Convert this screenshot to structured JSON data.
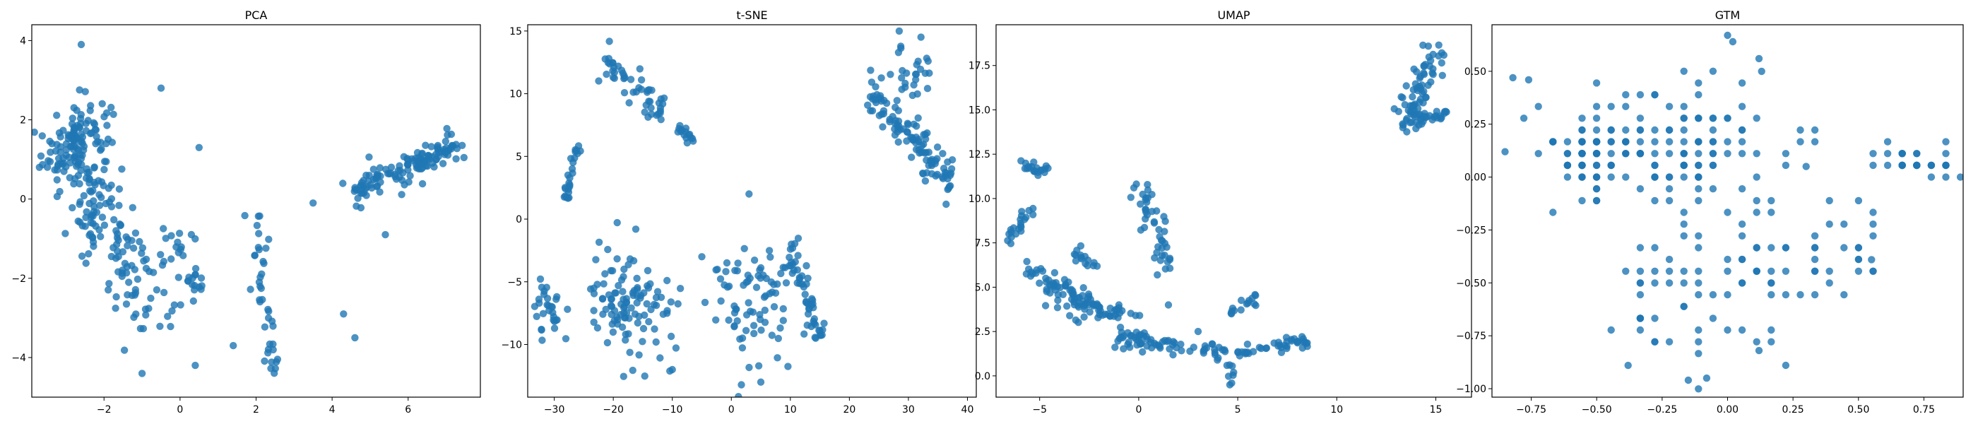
{
  "chart_data": [
    {
      "type": "scatter",
      "title": "PCA",
      "xlim": [
        -3.9,
        7.9
      ],
      "ylim": [
        -5.0,
        4.4
      ],
      "xticks": [
        -4,
        -2,
        0,
        2,
        4,
        6,
        8
      ],
      "yticks": [
        -4,
        -2,
        0,
        2,
        4
      ],
      "color": "#1f77b4",
      "clusters": [
        {
          "shape": "blob",
          "cx": -2.7,
          "cy": 1.3,
          "sx": 0.45,
          "sy": 0.65,
          "n": 150
        },
        {
          "shape": "line",
          "x0": -2.5,
          "y0": 0.3,
          "x1": -0.5,
          "y1": -3.1,
          "spread": 0.7,
          "n": 110
        },
        {
          "shape": "line",
          "x0": -0.3,
          "y0": -0.8,
          "x1": 0.5,
          "y1": -2.5,
          "spread": 0.35,
          "n": 30
        },
        {
          "shape": "line",
          "x0": 2.0,
          "y0": -0.3,
          "x1": 2.4,
          "y1": -4.5,
          "spread": 0.25,
          "n": 40
        },
        {
          "shape": "line",
          "x0": 4.5,
          "y0": 0.1,
          "x1": 7.4,
          "y1": 1.5,
          "spread": 0.35,
          "n": 130
        }
      ],
      "points": [
        [
          -2.6,
          3.9
        ],
        [
          -0.5,
          2.8
        ],
        [
          0.5,
          1.3
        ],
        [
          3.5,
          -0.1
        ],
        [
          4.3,
          -2.9
        ],
        [
          4.6,
          -3.5
        ],
        [
          -1.0,
          -4.4
        ],
        [
          0.4,
          -4.2
        ],
        [
          5.4,
          -0.9
        ],
        [
          1.4,
          -3.7
        ],
        [
          -3.7,
          0.8
        ]
      ]
    },
    {
      "type": "scatter",
      "title": "t-SNE",
      "xlim": [
        -34.5,
        41.5
      ],
      "ylim": [
        -14.2,
        15.5
      ],
      "xticks": [
        -30,
        -20,
        -10,
        0,
        10,
        20,
        30,
        40
      ],
      "yticks": [
        -10,
        -5,
        0,
        5,
        10,
        15
      ],
      "color": "#1f77b4",
      "clusters": [
        {
          "shape": "line",
          "x0": -22.0,
          "y0": 13.5,
          "x1": -12.0,
          "y1": 8.5,
          "spread": 1.3,
          "n": 50
        },
        {
          "shape": "line",
          "x0": -26.0,
          "y0": 6.0,
          "x1": -28.0,
          "y1": 1.5,
          "spread": 0.6,
          "n": 25
        },
        {
          "shape": "line",
          "x0": -9.0,
          "y0": 7.5,
          "x1": -6.0,
          "y1": 6.0,
          "spread": 0.6,
          "n": 15
        },
        {
          "shape": "blob",
          "cx": -31.0,
          "cy": -7.5,
          "sx": 1.2,
          "sy": 1.2,
          "n": 30
        },
        {
          "shape": "blob",
          "cx": -17.0,
          "cy": -7.0,
          "sx": 4.0,
          "sy": 2.5,
          "n": 110
        },
        {
          "shape": "blob",
          "cx": 4.0,
          "cy": -6.5,
          "sx": 3.5,
          "sy": 2.5,
          "n": 80
        },
        {
          "shape": "line",
          "x0": 10.0,
          "y0": -2.0,
          "x1": 15.0,
          "y1": -9.5,
          "spread": 1.2,
          "n": 50
        },
        {
          "shape": "line",
          "x0": 23.0,
          "y0": 10.5,
          "x1": 37.5,
          "y1": 2.5,
          "spread": 1.6,
          "n": 110
        },
        {
          "shape": "blob",
          "cx": 31.0,
          "cy": 11.5,
          "sx": 2.0,
          "sy": 1.2,
          "n": 25
        }
      ],
      "points": [
        [
          5.0,
          -13.0
        ],
        [
          -10.0,
          -12.0
        ],
        [
          3.0,
          2.0
        ],
        [
          -5.0,
          -3.0
        ]
      ]
    },
    {
      "type": "scatter",
      "title": "UMAP",
      "xlim": [
        -7.2,
        16.8
      ],
      "ylim": [
        -1.2,
        19.8
      ],
      "xticks": [
        -5,
        0,
        5,
        10,
        15
      ],
      "yticks": [
        0.0,
        2.5,
        5.0,
        7.5,
        10.0,
        12.5,
        15.0,
        17.5
      ],
      "color": "#1f77b4",
      "clusters": [
        {
          "shape": "line",
          "x0": -6.0,
          "y0": 12.0,
          "x1": -4.5,
          "y1": 11.5,
          "spread": 0.3,
          "n": 20
        },
        {
          "shape": "line",
          "x0": -5.5,
          "y0": 9.5,
          "x1": -6.5,
          "y1": 7.5,
          "spread": 0.4,
          "n": 20
        },
        {
          "shape": "line",
          "x0": -5.5,
          "y0": 6.0,
          "x1": -2.0,
          "y1": 3.5,
          "spread": 0.7,
          "n": 80
        },
        {
          "shape": "line",
          "x0": -2.0,
          "y0": 3.5,
          "x1": 0.0,
          "y1": 3.5,
          "spread": 0.4,
          "n": 20
        },
        {
          "shape": "line",
          "x0": -3.5,
          "y0": 7.2,
          "x1": -2.0,
          "y1": 6.0,
          "spread": 0.4,
          "n": 15
        },
        {
          "shape": "line",
          "x0": 0.0,
          "y0": 11.0,
          "x1": 1.5,
          "y1": 6.0,
          "spread": 0.55,
          "n": 45
        },
        {
          "shape": "line",
          "x0": -1.0,
          "y0": 2.2,
          "x1": 4.5,
          "y1": 1.2,
          "spread": 0.5,
          "n": 70
        },
        {
          "shape": "line",
          "x0": 5.0,
          "y0": 1.3,
          "x1": 8.5,
          "y1": 2.0,
          "spread": 0.3,
          "n": 40
        },
        {
          "shape": "line",
          "x0": 4.5,
          "y0": 3.5,
          "x1": 6.0,
          "y1": 4.5,
          "spread": 0.3,
          "n": 15
        },
        {
          "shape": "line",
          "x0": 4.6,
          "y0": 0.8,
          "x1": 4.6,
          "y1": -0.5,
          "spread": 0.2,
          "n": 8
        },
        {
          "shape": "line",
          "x0": 13.5,
          "y0": 14.0,
          "x1": 15.0,
          "y1": 18.5,
          "spread": 0.6,
          "n": 70
        },
        {
          "shape": "line",
          "x0": 13.5,
          "y0": 14.0,
          "x1": 15.8,
          "y1": 15.0,
          "spread": 0.4,
          "n": 25
        }
      ],
      "points": [
        [
          -6.2,
          8.0
        ],
        [
          1.5,
          4.0
        ],
        [
          -1.0,
          4.0
        ],
        [
          3.0,
          2.5
        ]
      ]
    },
    {
      "type": "scatter",
      "title": "GTM",
      "xlim": [
        -0.9,
        0.9
      ],
      "ylim": [
        -1.04,
        0.72
      ],
      "xticks": [
        -0.75,
        -0.5,
        -0.25,
        0.0,
        0.25,
        0.5,
        0.75
      ],
      "yticks": [
        -1.0,
        -0.75,
        -0.5,
        -0.25,
        0.0,
        0.25,
        0.5
      ],
      "color": "#1f77b4",
      "grid_step": 0.0556,
      "clusters": [
        {
          "shape": "blob",
          "cx": -0.55,
          "cy": 0.1,
          "sx": 0.06,
          "sy": 0.06,
          "n": 60
        },
        {
          "shape": "blob",
          "cx": -0.35,
          "cy": 0.15,
          "sx": 0.18,
          "sy": 0.15,
          "n": 80
        },
        {
          "shape": "blob",
          "cx": -0.05,
          "cy": 0.1,
          "sx": 0.15,
          "sy": 0.15,
          "n": 60
        },
        {
          "shape": "blob",
          "cx": -0.2,
          "cy": -0.55,
          "sx": 0.12,
          "sy": 0.2,
          "n": 45
        },
        {
          "shape": "blob",
          "cx": 0.15,
          "cy": -0.45,
          "sx": 0.08,
          "sy": 0.2,
          "n": 25
        },
        {
          "shape": "blob",
          "cx": 0.45,
          "cy": -0.35,
          "sx": 0.08,
          "sy": 0.12,
          "n": 25
        },
        {
          "shape": "blob",
          "cx": 0.72,
          "cy": 0.07,
          "sx": 0.08,
          "sy": 0.04,
          "n": 35
        }
      ],
      "points": [
        [
          0.0,
          0.67
        ],
        [
          0.02,
          0.64
        ],
        [
          0.12,
          0.56
        ],
        [
          0.13,
          0.5
        ],
        [
          -0.82,
          0.47
        ],
        [
          -0.76,
          0.46
        ],
        [
          -0.85,
          0.12
        ],
        [
          -0.08,
          -0.95
        ],
        [
          -0.15,
          -0.96
        ],
        [
          -0.38,
          -0.89
        ],
        [
          0.12,
          -0.82
        ],
        [
          0.55,
          -0.39
        ],
        [
          0.3,
          0.05
        ]
      ]
    }
  ]
}
